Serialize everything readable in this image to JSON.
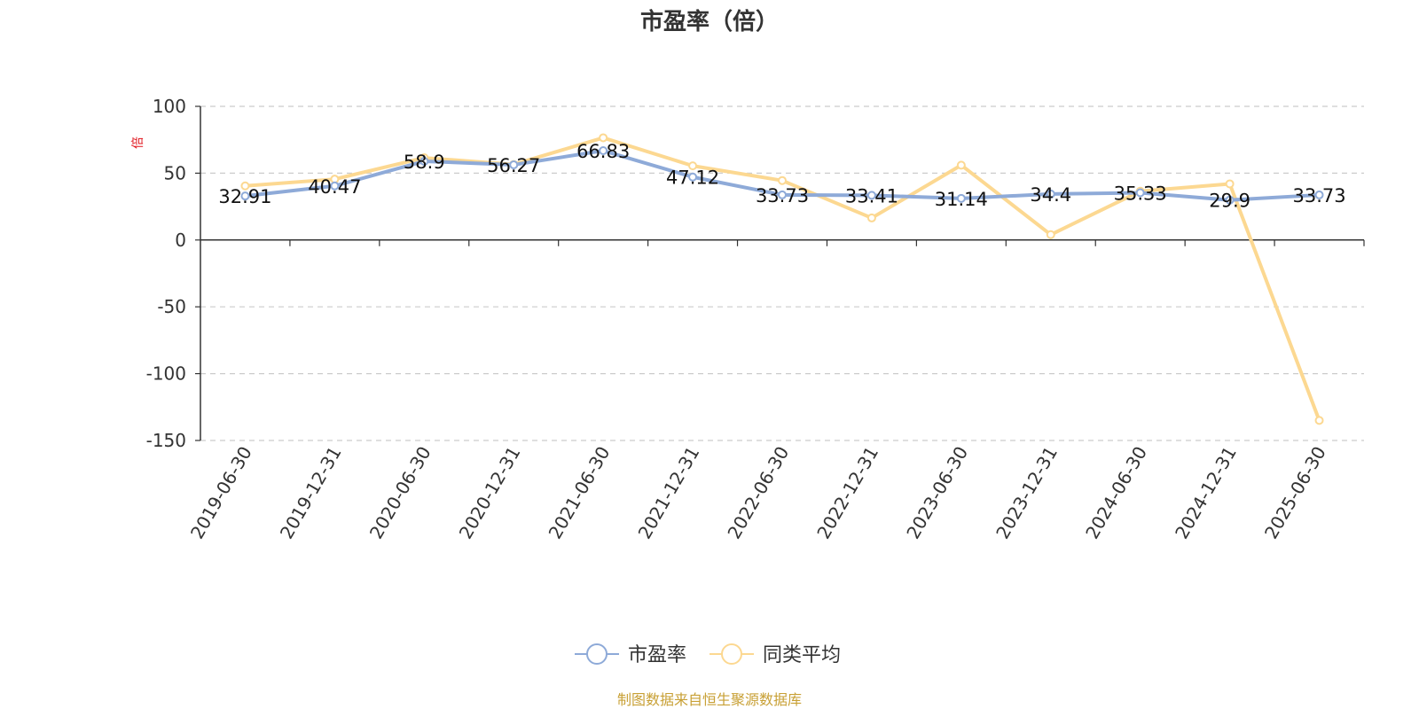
{
  "chart_data": {
    "type": "line",
    "title": "市盈率（倍）",
    "ylabel": "倍",
    "xlabel": "",
    "categories": [
      "2019-06-30",
      "2019-12-31",
      "2020-06-30",
      "2020-12-31",
      "2021-06-30",
      "2021-12-31",
      "2022-06-30",
      "2022-12-31",
      "2023-06-30",
      "2023-12-31",
      "2024-06-30",
      "2024-12-31",
      "2025-06-30"
    ],
    "ylim": [
      -150,
      100
    ],
    "yticks": [
      100,
      50,
      0,
      -50,
      -100,
      -150
    ],
    "grid": true,
    "legend_position": "bottom",
    "series": [
      {
        "name": "市盈率",
        "color": "#8eaad8",
        "values": [
          32.91,
          40.47,
          58.9,
          56.27,
          66.83,
          47.12,
          33.73,
          33.41,
          31.14,
          34.4,
          35.33,
          29.9,
          33.73
        ]
      },
      {
        "name": "同类平均",
        "color": "#fcd891",
        "values": [
          40.5,
          45.5,
          61.5,
          56.5,
          76.5,
          55.5,
          44.5,
          16.5,
          56.0,
          4.0,
          36.5,
          42.0,
          -135.0
        ]
      }
    ],
    "data_labels": [
      "32.91",
      "40.47",
      "58.9",
      "56.27",
      "66.83",
      "47.12",
      "33.73",
      "33.41",
      "31.14",
      "34.4",
      "35.33",
      "29.9",
      "33.73"
    ]
  },
  "source_note": "制图数据来自恒生聚源数据库"
}
